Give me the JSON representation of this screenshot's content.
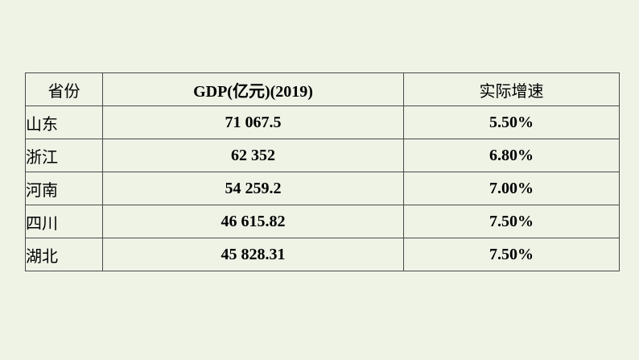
{
  "table": {
    "headers": {
      "province": "省份",
      "gdp": "GDP(亿元)(2019)",
      "growth": "实际增速"
    },
    "rows": [
      {
        "province": "山东",
        "gdp": "71 067.5",
        "growth": "5.50%"
      },
      {
        "province": "浙江",
        "gdp": "62 352",
        "growth": "6.80%"
      },
      {
        "province": "河南",
        "gdp": "54 259.2",
        "growth": "7.00%"
      },
      {
        "province": "四川",
        "gdp": "46 615.82",
        "growth": "7.50%"
      },
      {
        "province": "湖北",
        "gdp": "45 828.31",
        "growth": "7.50%"
      }
    ]
  },
  "chart_data": {
    "type": "table",
    "columns": [
      "省份",
      "GDP(亿元)(2019)",
      "实际增速"
    ],
    "rows": [
      [
        "山东",
        "71 067.5",
        "5.50%"
      ],
      [
        "浙江",
        "62 352",
        "6.80%"
      ],
      [
        "河南",
        "54 259.2",
        "7.00%"
      ],
      [
        "四川",
        "46 615.82",
        "7.50%"
      ],
      [
        "湖北",
        "45 828.31",
        "7.50%"
      ]
    ]
  }
}
